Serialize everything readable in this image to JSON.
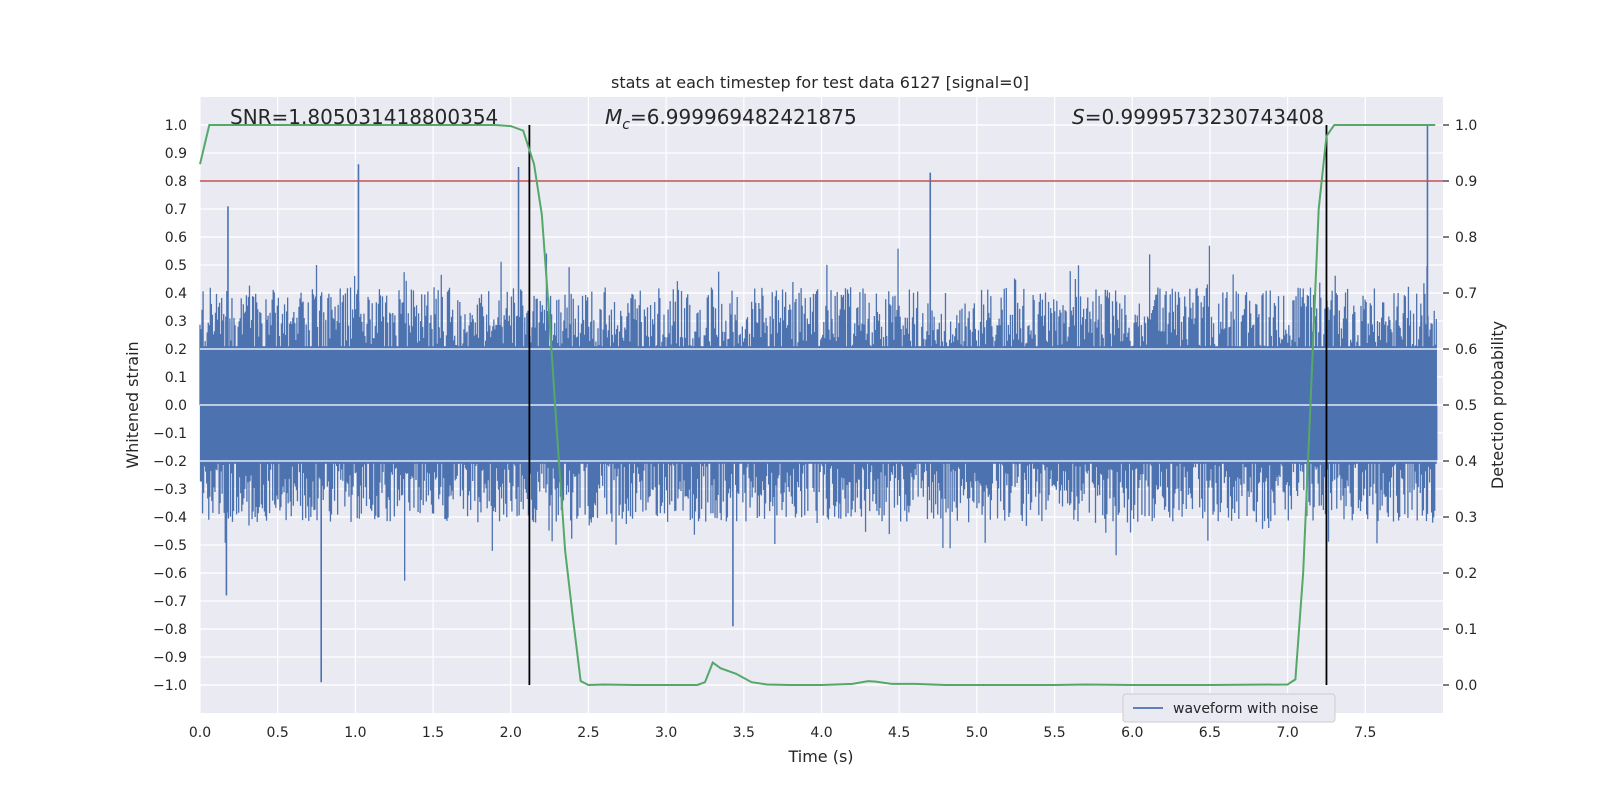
{
  "chart_data": {
    "type": "line",
    "title": "stats at each timestep for test data 6127 [signal=0]",
    "xlabel": "Time (s)",
    "ylabel": "Whitened strain",
    "y2label": "Detection probability",
    "xlim": [
      0.0,
      8.0
    ],
    "ylim": [
      -1.1,
      1.1
    ],
    "y2lim": [
      -0.05,
      1.05
    ],
    "xticks": [
      "0.0",
      "0.5",
      "1.0",
      "1.5",
      "2.0",
      "2.5",
      "3.0",
      "3.5",
      "4.0",
      "4.5",
      "5.0",
      "5.5",
      "6.0",
      "6.5",
      "7.0",
      "7.5"
    ],
    "yticks": [
      "1.0",
      "0.9",
      "0.8",
      "0.7",
      "0.6",
      "0.5",
      "0.4",
      "0.3",
      "0.2",
      "0.1",
      "0.0",
      "−0.1",
      "−0.2",
      "−0.3",
      "−0.4",
      "−0.5",
      "−0.6",
      "−0.7",
      "−0.8",
      "−0.9",
      "−1.0"
    ],
    "y2ticks": [
      "1.0",
      "0.9",
      "0.8",
      "0.7",
      "0.6",
      "0.5",
      "0.4",
      "0.3",
      "0.2",
      "0.1",
      "0.0"
    ],
    "grid": true,
    "legend_position": "lower-right",
    "annotations": {
      "snr": "SNR=1.805031418800354",
      "mc_symbol": "M",
      "mc_sub": "c",
      "mc_value": "=6.999969482421875",
      "s_symbol": "S",
      "s_value": "=0.9999573230743408"
    },
    "threshold": {
      "value": 0.9,
      "axis": "right",
      "color": "#c44e52"
    },
    "vertical_lines": [
      2.12,
      7.25
    ],
    "series": [
      {
        "name": "waveform with noise",
        "axis": "left",
        "color": "#4c72b0",
        "style": "dense noise, |amplitude| mostly 0.2-0.5",
        "peaks": [
          {
            "x": 0.78,
            "y": -0.99
          },
          {
            "x": 1.02,
            "y": 0.86
          },
          {
            "x": 2.05,
            "y": 0.85
          },
          {
            "x": 4.7,
            "y": 0.83
          },
          {
            "x": 7.9,
            "y": 1.0
          },
          {
            "x": 3.43,
            "y": -0.79
          },
          {
            "x": 0.18,
            "y": 0.71
          },
          {
            "x": 0.17,
            "y": -0.68
          }
        ]
      },
      {
        "name": "detection probability",
        "axis": "right",
        "color": "#55a868",
        "x": [
          0.0,
          0.06,
          0.5,
          1.0,
          1.5,
          1.9,
          2.0,
          2.08,
          2.15,
          2.2,
          2.25,
          2.3,
          2.35,
          2.4,
          2.45,
          2.5,
          2.6,
          2.8,
          3.0,
          3.2,
          3.25,
          3.3,
          3.35,
          3.45,
          3.55,
          3.65,
          3.8,
          4.0,
          4.2,
          4.3,
          4.35,
          4.45,
          4.6,
          4.8,
          5.0,
          5.5,
          5.7,
          6.0,
          6.5,
          7.0,
          7.05,
          7.1,
          7.15,
          7.2,
          7.25,
          7.3,
          7.35,
          7.5,
          7.95
        ],
        "y": [
          0.93,
          1.0,
          1.0,
          1.0,
          1.0,
          1.0,
          0.998,
          0.99,
          0.93,
          0.84,
          0.65,
          0.44,
          0.24,
          0.12,
          0.007,
          0.0,
          0.001,
          0.0,
          0.0,
          0.0,
          0.005,
          0.04,
          0.03,
          0.02,
          0.005,
          0.001,
          0.0,
          0.0,
          0.002,
          0.007,
          0.006,
          0.002,
          0.002,
          0.0,
          0.0,
          0.0,
          0.001,
          0.0,
          0.0,
          0.001,
          0.01,
          0.2,
          0.52,
          0.85,
          0.98,
          1.0,
          1.0,
          1.0,
          1.0
        ]
      }
    ]
  }
}
